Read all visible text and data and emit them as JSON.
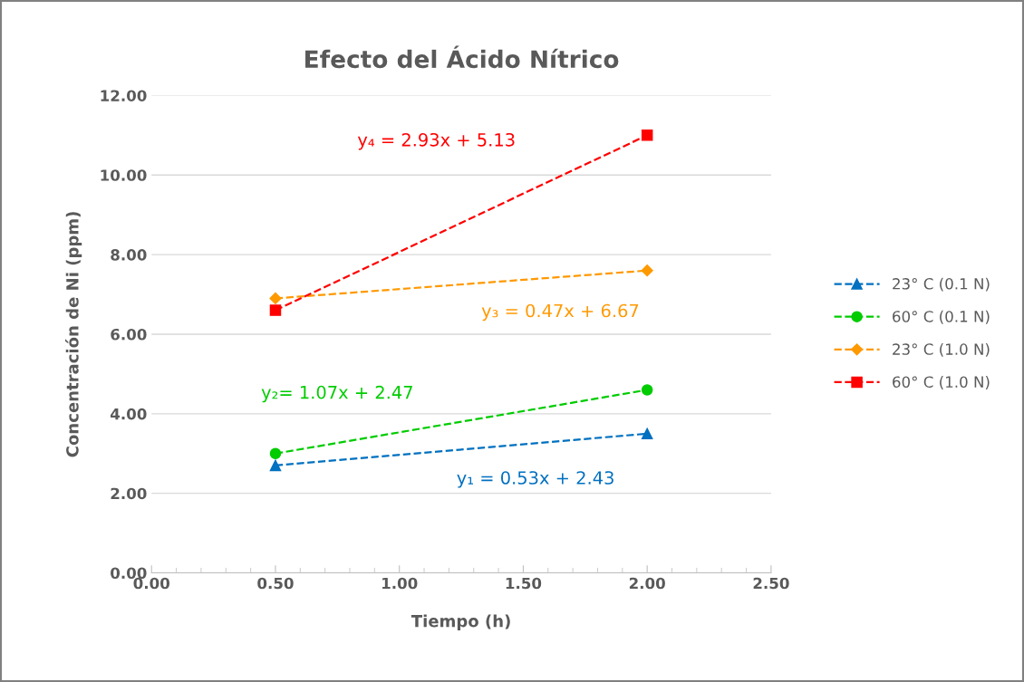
{
  "chart_data": {
    "type": "line",
    "title": "Efecto del Ácido Nítrico",
    "xlabel": "Tiempo (h)",
    "ylabel": "Concentración de Ni (ppm)",
    "x": [
      0.5,
      2.0
    ],
    "series": [
      {
        "name": "23° C (0.1 N)",
        "color": "#0070c0",
        "marker": "triangle",
        "values": [
          2.7,
          3.5
        ]
      },
      {
        "name": "60° C (0.1 N)",
        "color": "#00cc00",
        "marker": "circle",
        "values": [
          3.0,
          4.6
        ]
      },
      {
        "name": "23° C (1.0 N)",
        "color": "#ff9900",
        "marker": "diamond",
        "values": [
          6.9,
          7.6
        ]
      },
      {
        "name": "60° C (1.0 N)",
        "color": "#ff0000",
        "marker": "square",
        "values": [
          6.6,
          11.0
        ]
      }
    ],
    "line_style": "dashed",
    "annotations": [
      "y₁ = 0.53x + 2.43",
      "y₂= 1.07x + 2.47",
      "y₃ = 0.47x + 6.67",
      "y₄ = 2.93x + 5.13"
    ],
    "xlim": [
      0,
      2.5
    ],
    "xticks": [
      {
        "value": 0,
        "label": "0.00"
      },
      {
        "value": 0.5,
        "label": "0.50"
      },
      {
        "value": 1.0,
        "label": "1.00"
      },
      {
        "value": 1.5,
        "label": "1.50"
      },
      {
        "value": 2.0,
        "label": "2.00"
      },
      {
        "value": 2.5,
        "label": "2.50"
      }
    ],
    "ylim": [
      0,
      12
    ],
    "yticks": [
      {
        "value": 0,
        "label": "0.00"
      },
      {
        "value": 2,
        "label": "2.00"
      },
      {
        "value": 4,
        "label": "4.00"
      },
      {
        "value": 6,
        "label": "6.00"
      },
      {
        "value": 8,
        "label": "8.00"
      },
      {
        "value": 10,
        "label": "10.00"
      },
      {
        "value": 12,
        "label": "12.00"
      }
    ],
    "grid": "y",
    "legend": "right"
  }
}
